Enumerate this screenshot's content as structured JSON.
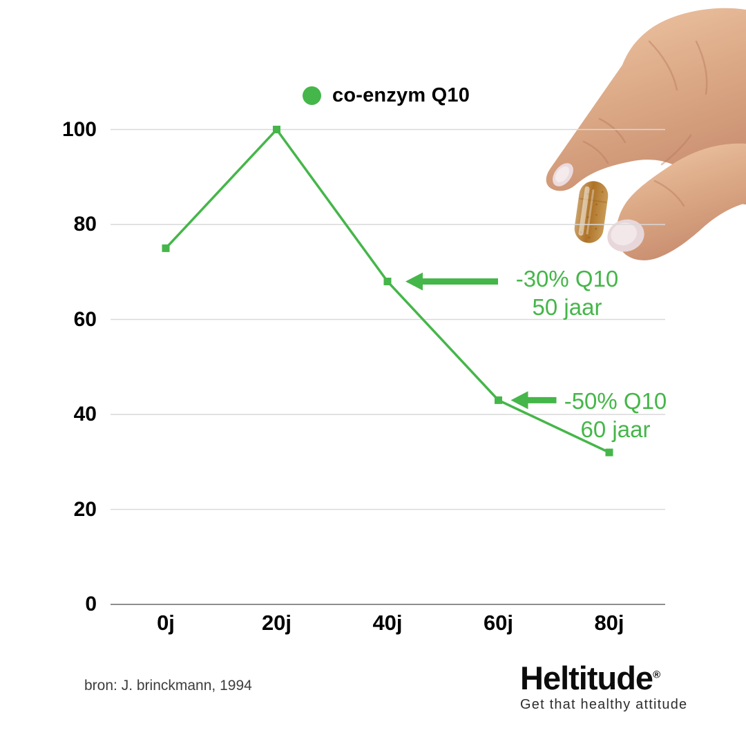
{
  "chart_data": {
    "type": "line",
    "title": "",
    "legend": {
      "label": "co-enzym Q10",
      "position": "top-center",
      "marker": "circle"
    },
    "categories": [
      "0j",
      "20j",
      "40j",
      "60j",
      "80j"
    ],
    "series": [
      {
        "name": "co-enzym Q10",
        "values": [
          75,
          100,
          68,
          43,
          32
        ],
        "color": "#45b649",
        "marker": "square"
      }
    ],
    "xlabel": "",
    "ylabel": "",
    "ylim": [
      0,
      100
    ],
    "yticks": [
      0,
      20,
      40,
      60,
      80,
      100
    ],
    "grid": true,
    "annotations": [
      {
        "line1": "-30% Q10",
        "line2": "50 jaar",
        "target_category": "40j",
        "target_value": 68,
        "arrow": "left"
      },
      {
        "line1": "-50% Q10",
        "line2": "60 jaar",
        "target_category": "60j",
        "target_value": 43,
        "arrow": "left"
      }
    ]
  },
  "footer": {
    "source": "bron: J. brinckmann, 1994",
    "brand": "Heltitude",
    "brand_mark": "®",
    "tagline": "Get that healthy attitude"
  },
  "decoration": {
    "photo": "hand-holding-supplement-capsule"
  },
  "colors": {
    "accent_green": "#45b649",
    "grid_line": "#d9d9d9",
    "axis_line": "#8e8e8e",
    "label_text": "#000000",
    "source_text": "#3d3d3d",
    "skin": "#ddab88",
    "capsule": "#b5792f",
    "nail": "#e9d8db"
  }
}
